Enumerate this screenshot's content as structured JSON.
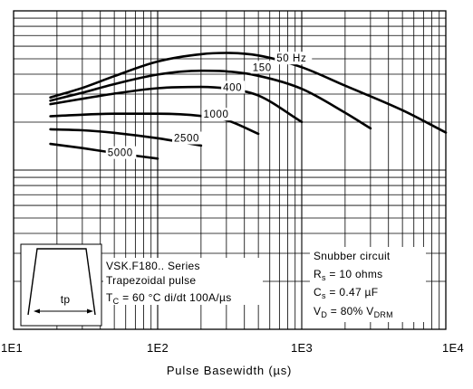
{
  "chart_data": {
    "type": "line",
    "title": "",
    "xlabel": "Pulse Basewidth (µs)",
    "ylabel": "",
    "x_scale": "log",
    "xlim": [
      10,
      10000
    ],
    "x_ticks": [
      "1E1",
      "1E2",
      "1E3",
      "1E4"
    ],
    "grid": true,
    "series": [
      {
        "name": "50 Hz",
        "label": "50 Hz",
        "x": [
          18,
          30,
          50,
          100,
          200,
          300,
          500,
          1000,
          2000,
          5000,
          10000
        ],
        "y": [
          0.728,
          0.758,
          0.795,
          0.841,
          0.864,
          0.868,
          0.86,
          0.823,
          0.765,
          0.688,
          0.618
        ]
      },
      {
        "name": "150",
        "label": "150",
        "x": [
          18,
          30,
          50,
          100,
          200,
          300,
          500,
          1000,
          2000,
          3000
        ],
        "y": [
          0.718,
          0.743,
          0.77,
          0.8,
          0.812,
          0.81,
          0.796,
          0.755,
          0.68,
          0.631
        ]
      },
      {
        "name": "400",
        "label": "400",
        "x": [
          18,
          30,
          50,
          100,
          200,
          300,
          500,
          1000
        ],
        "y": [
          0.707,
          0.724,
          0.74,
          0.757,
          0.761,
          0.756,
          0.734,
          0.651
        ]
      },
      {
        "name": "1000",
        "label": "1000",
        "x": [
          18,
          30,
          50,
          100,
          200,
          300,
          500
        ],
        "y": [
          0.669,
          0.674,
          0.677,
          0.677,
          0.67,
          0.657,
          0.614
        ]
      },
      {
        "name": "2500",
        "label": "2500",
        "x": [
          18,
          30,
          50,
          100,
          200
        ],
        "y": [
          0.628,
          0.625,
          0.617,
          0.6,
          0.577
        ]
      },
      {
        "name": "5000",
        "label": "5000",
        "x": [
          18,
          30,
          50,
          100
        ],
        "y": [
          0.582,
          0.569,
          0.554,
          0.536
        ]
      }
    ]
  },
  "annotations": {
    "series_text": "VSK.F180.. Series",
    "pulse_text": "Trapezoidal pulse",
    "tc_main": "T",
    "tc_sub": "C",
    "tc_rest": " = 60 °C di/dt 100A/µs",
    "snubber": "Snubber circuit",
    "rs_main": "R",
    "rs_sub": "s",
    "rs_rest": " = 10 ohms",
    "cs_main": "C",
    "cs_sub": "s",
    "cs_rest": " = 0.47 µF",
    "vd_main": "V",
    "vd_sub": "D",
    "vd_rest": " = 80% V",
    "vd_sub2": "DRM",
    "tp_label": "tp"
  }
}
